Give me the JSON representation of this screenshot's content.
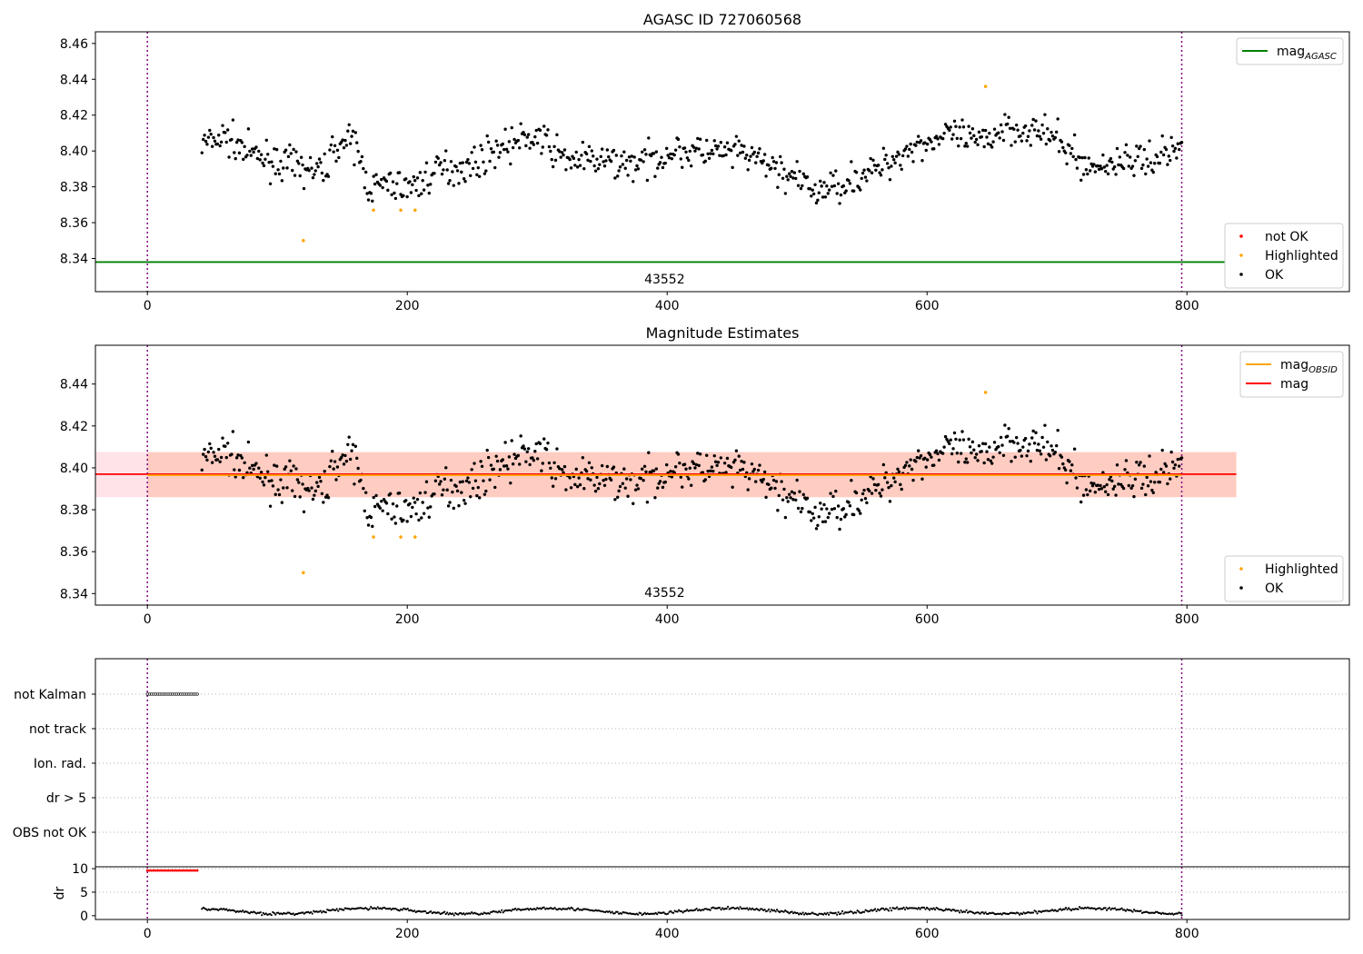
{
  "chart_data": [
    {
      "type": "scatter",
      "title": "AGASC ID 727060568",
      "xlim": [
        -40,
        925
      ],
      "ylim": [
        8.3215,
        8.4665
      ],
      "xticks": [
        0,
        200,
        400,
        600,
        800
      ],
      "yticks": [
        8.34,
        8.36,
        8.38,
        8.4,
        8.42,
        8.44,
        8.46
      ],
      "ytick_decimals": 2,
      "vlines": [
        0,
        796
      ],
      "hlines": [
        {
          "name": "mag_AGASC",
          "y": 8.338,
          "color": "#008000"
        }
      ],
      "annotation": {
        "text": "43552",
        "x": 398
      },
      "highlighted": {
        "color": "#ffa500",
        "x": [
          120,
          174,
          195,
          206,
          645
        ],
        "y": [
          8.35,
          8.367,
          8.367,
          8.367,
          8.436
        ]
      },
      "ok_color": "#000000",
      "not_ok_color": "#ff0000",
      "legend": {
        "top": [
          {
            "label": "mag",
            "sub": "AGASC",
            "color": "#008000",
            "kind": "line"
          }
        ],
        "bottom": [
          {
            "label": "not OK",
            "color": "#ff0000",
            "kind": "dot"
          },
          {
            "label": "Highlighted",
            "color": "#ffa500",
            "kind": "dot"
          },
          {
            "label": "OK",
            "color": "#000000",
            "kind": "dot"
          }
        ]
      }
    },
    {
      "type": "scatter",
      "title": "Magnitude Estimates",
      "xlim": [
        -40,
        925
      ],
      "ylim": [
        8.3345,
        8.4585
      ],
      "xticks": [
        0,
        200,
        400,
        600,
        800
      ],
      "yticks": [
        8.34,
        8.36,
        8.38,
        8.4,
        8.42,
        8.44
      ],
      "ytick_decimals": 2,
      "vlines": [
        0,
        796
      ],
      "hlines": [
        {
          "name": "mag",
          "y": 8.397,
          "color": "#ff0000"
        },
        {
          "name": "mag_OBSID",
          "y": 8.3965,
          "color": "#ffa500",
          "x0": 0,
          "x1": 796
        }
      ],
      "bands": [
        {
          "name": "mag-band",
          "x0": -40,
          "x1": 838,
          "y0": 8.386,
          "y1": 8.4075,
          "color": "#ffc0cb",
          "opacity": 0.45
        },
        {
          "name": "mag_OBSID-band",
          "x0": 0,
          "x1": 838,
          "y0": 8.386,
          "y1": 8.4075,
          "color": "#ffa07a",
          "opacity": 0.35
        }
      ],
      "annotation": {
        "text": "43552",
        "x": 398
      },
      "highlighted": {
        "color": "#ffa500",
        "x": [
          120,
          174,
          195,
          206,
          645
        ],
        "y": [
          8.35,
          8.367,
          8.367,
          8.367,
          8.436
        ]
      },
      "ok_color": "#000000",
      "legend": {
        "top": [
          {
            "label": "mag",
            "sub": "OBSID",
            "color": "#ffa500",
            "kind": "line"
          },
          {
            "label": "mag",
            "sub": "",
            "color": "#ff0000",
            "kind": "line"
          }
        ],
        "bottom": [
          {
            "label": "Highlighted",
            "color": "#ffa500",
            "kind": "dot"
          },
          {
            "label": "OK",
            "color": "#000000",
            "kind": "dot"
          }
        ]
      }
    },
    {
      "type": "scatter",
      "title": "",
      "xlim": [
        -40,
        925
      ],
      "categories": [
        "not Kalman",
        "not track",
        "Ion. rad.",
        "dr > 5",
        "OBS not OK"
      ],
      "flag_segments": [
        {
          "category": "not Kalman",
          "x0": 0,
          "x1": 40
        }
      ],
      "vlines": [
        0,
        796
      ]
    },
    {
      "type": "scatter",
      "title": "",
      "ylabel": "dr",
      "xlim": [
        -40,
        925
      ],
      "ylim": [
        -0.8,
        10.4
      ],
      "xticks": [
        0,
        200,
        400,
        600,
        800
      ],
      "yticks": [
        0,
        5,
        10
      ],
      "vlines": [
        0,
        796
      ],
      "red_segment": {
        "x0": 0,
        "x1": 40,
        "y": 9.6,
        "color": "#ff0000"
      }
    }
  ]
}
